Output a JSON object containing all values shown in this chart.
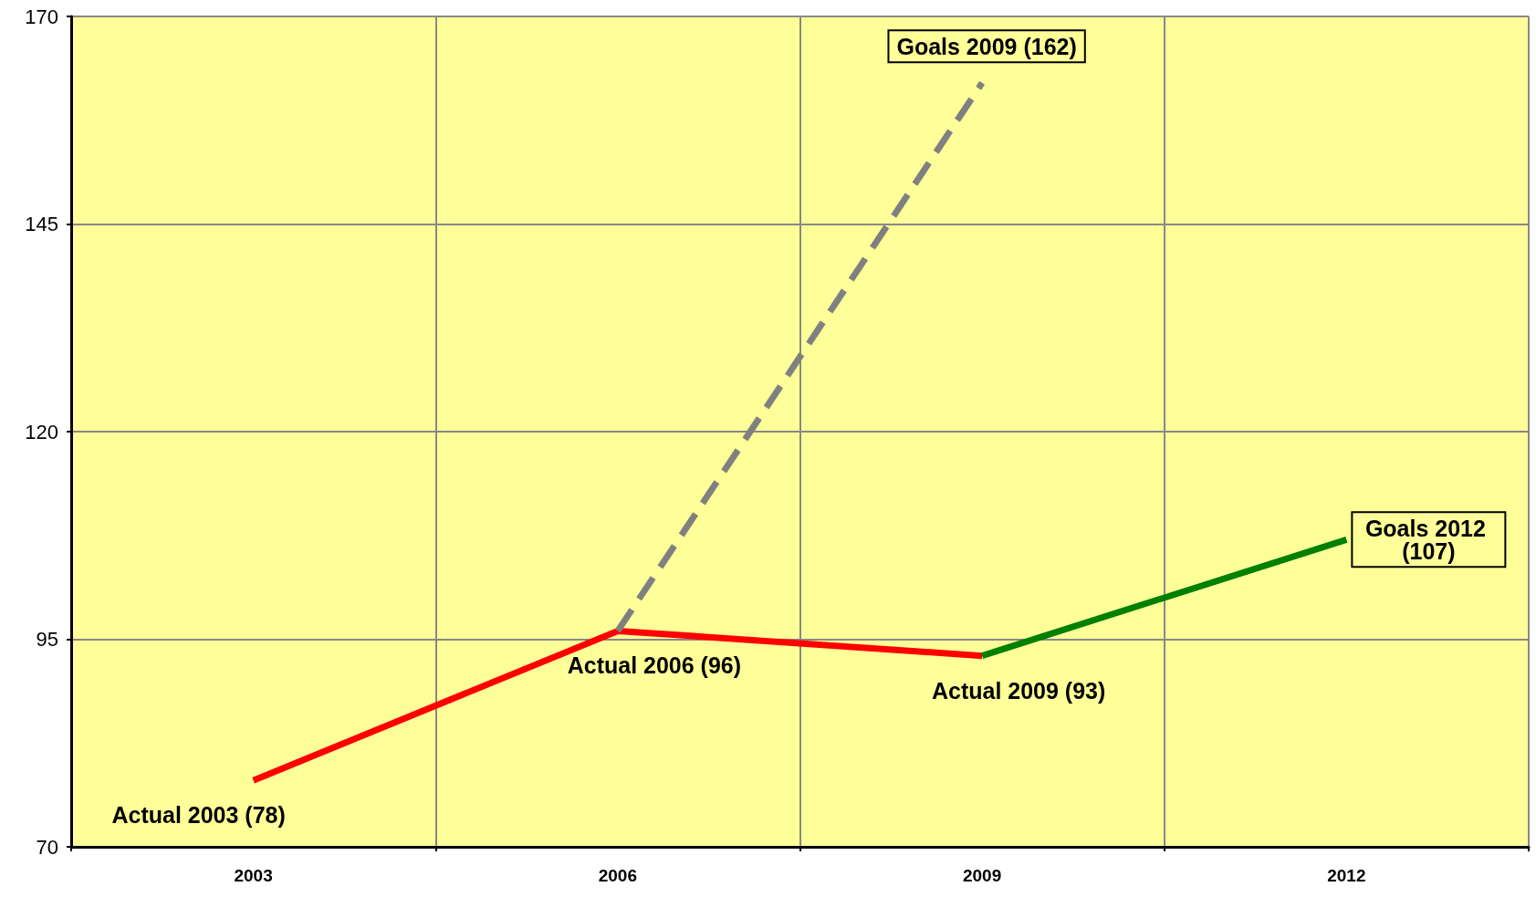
{
  "chart_data": {
    "type": "line",
    "categories": [
      "2003",
      "2006",
      "2009",
      "2012"
    ],
    "series": [
      {
        "color": "#ff0000",
        "values": [
          78,
          96,
          93,
          null
        ]
      },
      {
        "color": "#808080",
        "values": [
          null,
          96,
          162,
          null
        ],
        "line_style": "dashed"
      },
      {
        "color": "#008000",
        "values": [
          null,
          null,
          93,
          107
        ]
      }
    ],
    "ylim": [
      70,
      170
    ],
    "yticks": [
      70,
      95,
      120,
      145,
      170
    ],
    "grid": true,
    "marker": "none",
    "line_style": "solid",
    "annotations": [
      {
        "text": "Actual 2003 (78)",
        "x": "2003",
        "y": 78
      },
      {
        "text": "Actual 2006 (96)",
        "x": "2006",
        "y": 96
      },
      {
        "text": "Actual 2009 (93)",
        "x": "2009",
        "y": 93
      },
      {
        "text": "Goals 2009 (162)",
        "x": "2009",
        "y": 162
      },
      {
        "text": "Goals 2012 (107)",
        "x": "2012",
        "y": 107
      }
    ]
  }
}
